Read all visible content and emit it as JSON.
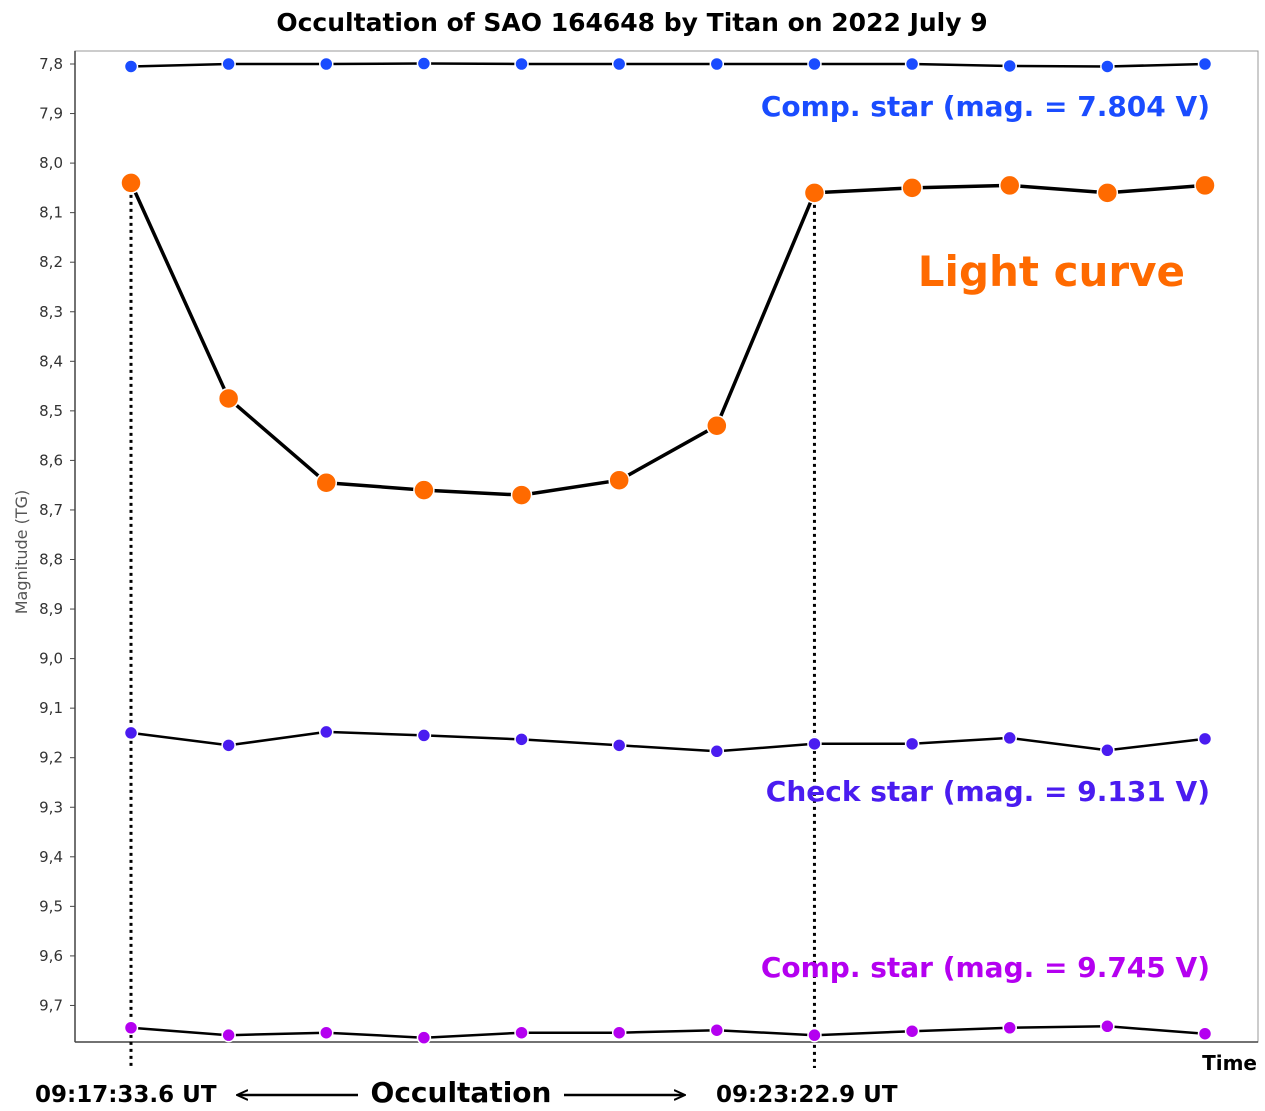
{
  "chart_data": {
    "type": "line",
    "title": "Occultation of SAO 164648 by Titan on 2022 July 9",
    "ylabel": "Magnitude (TG)",
    "xlabel": "Time",
    "ylim": [
      7.78,
      9.78
    ],
    "y_inverted": true,
    "y_ticks": [
      "7,8",
      "7,9",
      "8,0",
      "8,1",
      "8,2",
      "8,3",
      "8,4",
      "8,5",
      "8,6",
      "8,7",
      "8,8",
      "8,9",
      "9,0",
      "9,1",
      "9,2",
      "9,3",
      "9,4",
      "9,5",
      "9,6",
      "9,7"
    ],
    "grid": false,
    "x": [
      1,
      2,
      3,
      4,
      5,
      6,
      7,
      8,
      9,
      10,
      11,
      12
    ],
    "series": [
      {
        "name": "Comp. star (mag. = 7.804 V)",
        "color": "#1a4cff",
        "values": [
          7.805,
          7.8,
          7.8,
          7.799,
          7.8,
          7.8,
          7.8,
          7.8,
          7.8,
          7.804,
          7.805,
          7.8
        ]
      },
      {
        "name": "Light curve",
        "color": "#ff6a00",
        "values": [
          8.04,
          8.475,
          8.645,
          8.66,
          8.67,
          8.64,
          8.53,
          8.06,
          8.05,
          8.045,
          8.06,
          8.045
        ]
      },
      {
        "name": "Check star (mag. = 9.131 V)",
        "color": "#4a1cf0",
        "values": [
          9.15,
          9.175,
          9.148,
          9.155,
          9.163,
          9.175,
          9.187,
          9.172,
          9.172,
          9.16,
          9.185,
          9.162
        ]
      },
      {
        "name": "Comp. star (mag. = 9.745 V)",
        "color": "#b400f0",
        "values": [
          9.745,
          9.76,
          9.755,
          9.765,
          9.755,
          9.755,
          9.75,
          9.76,
          9.752,
          9.745,
          9.742,
          9.757
        ]
      }
    ],
    "annotations": [
      {
        "text": "Comp. star (mag. = 7.804 V)",
        "color": "#1a4cff"
      },
      {
        "text": "Light curve",
        "color": "#ff6a00"
      },
      {
        "text": "Check star (mag. = 9.131 V)",
        "color": "#4a1cf0"
      },
      {
        "text": "Comp. star (mag. = 9.745 V)",
        "color": "#b400f0"
      }
    ],
    "markers": {
      "start_time": "09:17:33.6 UT",
      "end_time": "09:23:22.9 UT",
      "event_label": "Occultation",
      "start_index": 1,
      "end_index": 8
    }
  }
}
